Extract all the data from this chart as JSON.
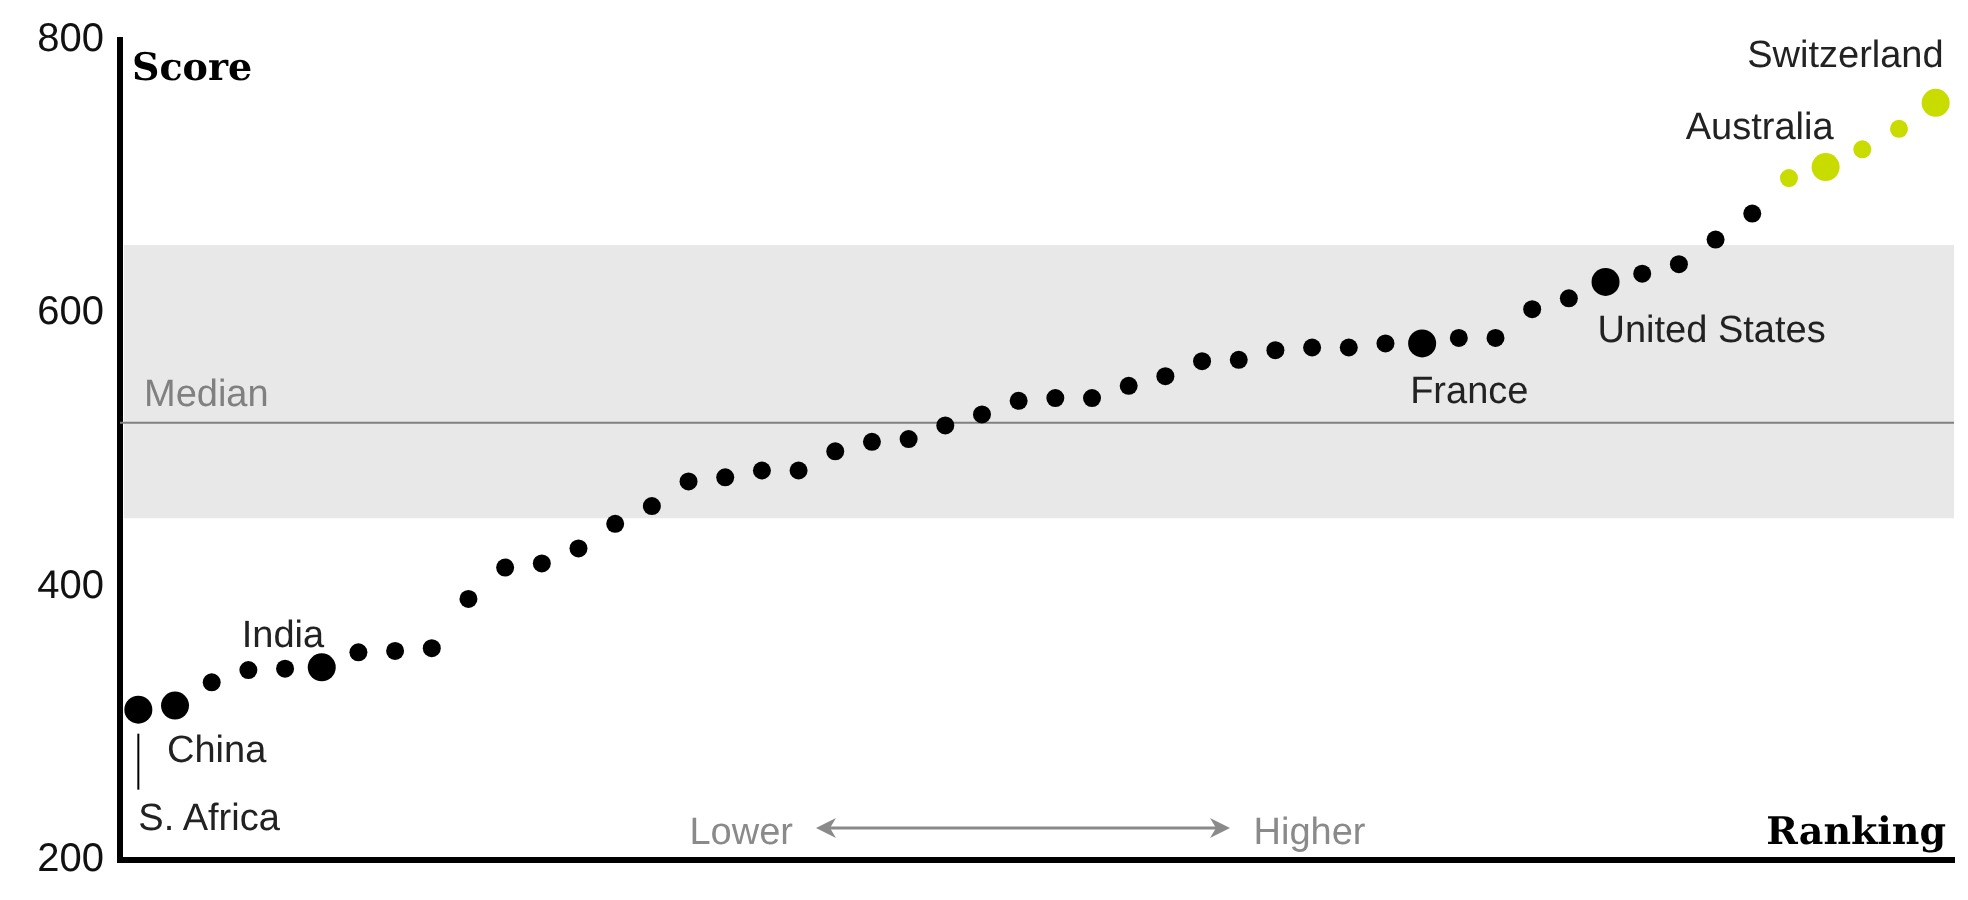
{
  "chart_data": {
    "type": "scatter",
    "ylabel": "Score",
    "xlabel": "Ranking",
    "categories": [
      null,
      null,
      null,
      null,
      null,
      null,
      null,
      null,
      null,
      null,
      null,
      null,
      null,
      null,
      null,
      null,
      null,
      null,
      null,
      null,
      null,
      null,
      null,
      null,
      null,
      null,
      null,
      null,
      null,
      null,
      null,
      null,
      null,
      null,
      null,
      null,
      null,
      null,
      null,
      null,
      null,
      null,
      null,
      null,
      null,
      null,
      null,
      null,
      null,
      null
    ],
    "series": [
      {
        "color": "#000000",
        "values": [
          null,
          null,
          330,
          339,
          340,
          null,
          352,
          353,
          355,
          391,
          414,
          417,
          428,
          446,
          459,
          477,
          480,
          485,
          485,
          499,
          506,
          508,
          518,
          526,
          536,
          538,
          538,
          547,
          554,
          565,
          566,
          573,
          575,
          575,
          578,
          null,
          582,
          582,
          603,
          611,
          null,
          629,
          636,
          654,
          673,
          null,
          null,
          null,
          null,
          null
        ]
      },
      {
        "color": "#c8dc00",
        "values": [
          null,
          null,
          null,
          null,
          null,
          null,
          null,
          null,
          null,
          null,
          null,
          null,
          null,
          null,
          null,
          null,
          null,
          null,
          null,
          null,
          null,
          null,
          null,
          null,
          null,
          null,
          null,
          null,
          null,
          null,
          null,
          null,
          null,
          null,
          null,
          null,
          null,
          null,
          null,
          null,
          null,
          null,
          null,
          null,
          null,
          699,
          null,
          720,
          735,
          null
        ]
      },
      {
        "name": "S. Africa",
        "color": "#000000",
        "values": [
          310,
          null,
          null,
          null,
          null,
          null,
          null,
          null,
          null,
          null,
          null,
          null,
          null,
          null,
          null,
          null,
          null,
          null,
          null,
          null,
          null,
          null,
          null,
          null,
          null,
          null,
          null,
          null,
          null,
          null,
          null,
          null,
          null,
          null,
          null,
          null,
          null,
          null,
          null,
          null,
          null,
          null,
          null,
          null,
          null,
          null,
          null,
          null,
          null,
          null
        ]
      },
      {
        "name": "China",
        "color": "#000000",
        "values": [
          null,
          313,
          null,
          null,
          null,
          null,
          null,
          null,
          null,
          null,
          null,
          null,
          null,
          null,
          null,
          null,
          null,
          null,
          null,
          null,
          null,
          null,
          null,
          null,
          null,
          null,
          null,
          null,
          null,
          null,
          null,
          null,
          null,
          null,
          null,
          null,
          null,
          null,
          null,
          null,
          null,
          null,
          null,
          null,
          null,
          null,
          null,
          null,
          null,
          null
        ]
      },
      {
        "name": "India",
        "color": "#000000",
        "values": [
          null,
          null,
          null,
          null,
          null,
          341,
          null,
          null,
          null,
          null,
          null,
          null,
          null,
          null,
          null,
          null,
          null,
          null,
          null,
          null,
          null,
          null,
          null,
          null,
          null,
          null,
          null,
          null,
          null,
          null,
          null,
          null,
          null,
          null,
          null,
          null,
          null,
          null,
          null,
          null,
          null,
          null,
          null,
          null,
          null,
          null,
          null,
          null,
          null,
          null
        ]
      },
      {
        "name": "France",
        "color": "#000000",
        "values": [
          null,
          null,
          null,
          null,
          null,
          null,
          null,
          null,
          null,
          null,
          null,
          null,
          null,
          null,
          null,
          null,
          null,
          null,
          null,
          null,
          null,
          null,
          null,
          null,
          null,
          null,
          null,
          null,
          null,
          null,
          null,
          null,
          null,
          null,
          null,
          578,
          null,
          null,
          null,
          null,
          null,
          null,
          null,
          null,
          null,
          null,
          null,
          null,
          null,
          null
        ]
      },
      {
        "name": "United States",
        "color": "#000000",
        "values": [
          null,
          null,
          null,
          null,
          null,
          null,
          null,
          null,
          null,
          null,
          null,
          null,
          null,
          null,
          null,
          null,
          null,
          null,
          null,
          null,
          null,
          null,
          null,
          null,
          null,
          null,
          null,
          null,
          null,
          null,
          null,
          null,
          null,
          null,
          null,
          null,
          null,
          null,
          null,
          null,
          623,
          null,
          null,
          null,
          null,
          null,
          null,
          null,
          null,
          null
        ]
      },
      {
        "name": "Australia",
        "color": "#c8dc00",
        "values": [
          null,
          null,
          null,
          null,
          null,
          null,
          null,
          null,
          null,
          null,
          null,
          null,
          null,
          null,
          null,
          null,
          null,
          null,
          null,
          null,
          null,
          null,
          null,
          null,
          null,
          null,
          null,
          null,
          null,
          null,
          null,
          null,
          null,
          null,
          null,
          null,
          null,
          null,
          null,
          null,
          null,
          null,
          null,
          null,
          null,
          null,
          707,
          null,
          null,
          null
        ]
      },
      {
        "name": "Switzerland",
        "color": "#c8dc00",
        "values": [
          null,
          null,
          null,
          null,
          null,
          null,
          null,
          null,
          null,
          null,
          null,
          null,
          null,
          null,
          null,
          null,
          null,
          null,
          null,
          null,
          null,
          null,
          null,
          null,
          null,
          null,
          null,
          null,
          null,
          null,
          null,
          null,
          null,
          null,
          null,
          null,
          null,
          null,
          null,
          null,
          null,
          null,
          null,
          null,
          null,
          null,
          null,
          null,
          null,
          754
        ]
      }
    ],
    "ylim": [
      200,
      800
    ],
    "yticks": [
      200,
      400,
      600,
      800
    ],
    "ref_lines": [
      {
        "axis": "y",
        "value": 520,
        "label": "Median",
        "color": "#808080"
      }
    ],
    "bands": [
      {
        "axis": "y",
        "from": 450,
        "to": 650,
        "color": "#e8e8e8"
      }
    ],
    "annotations": [
      "Lower",
      "Higher"
    ],
    "grid": false,
    "legend": false,
    "tick_labels": "y",
    "marker": "circle"
  }
}
